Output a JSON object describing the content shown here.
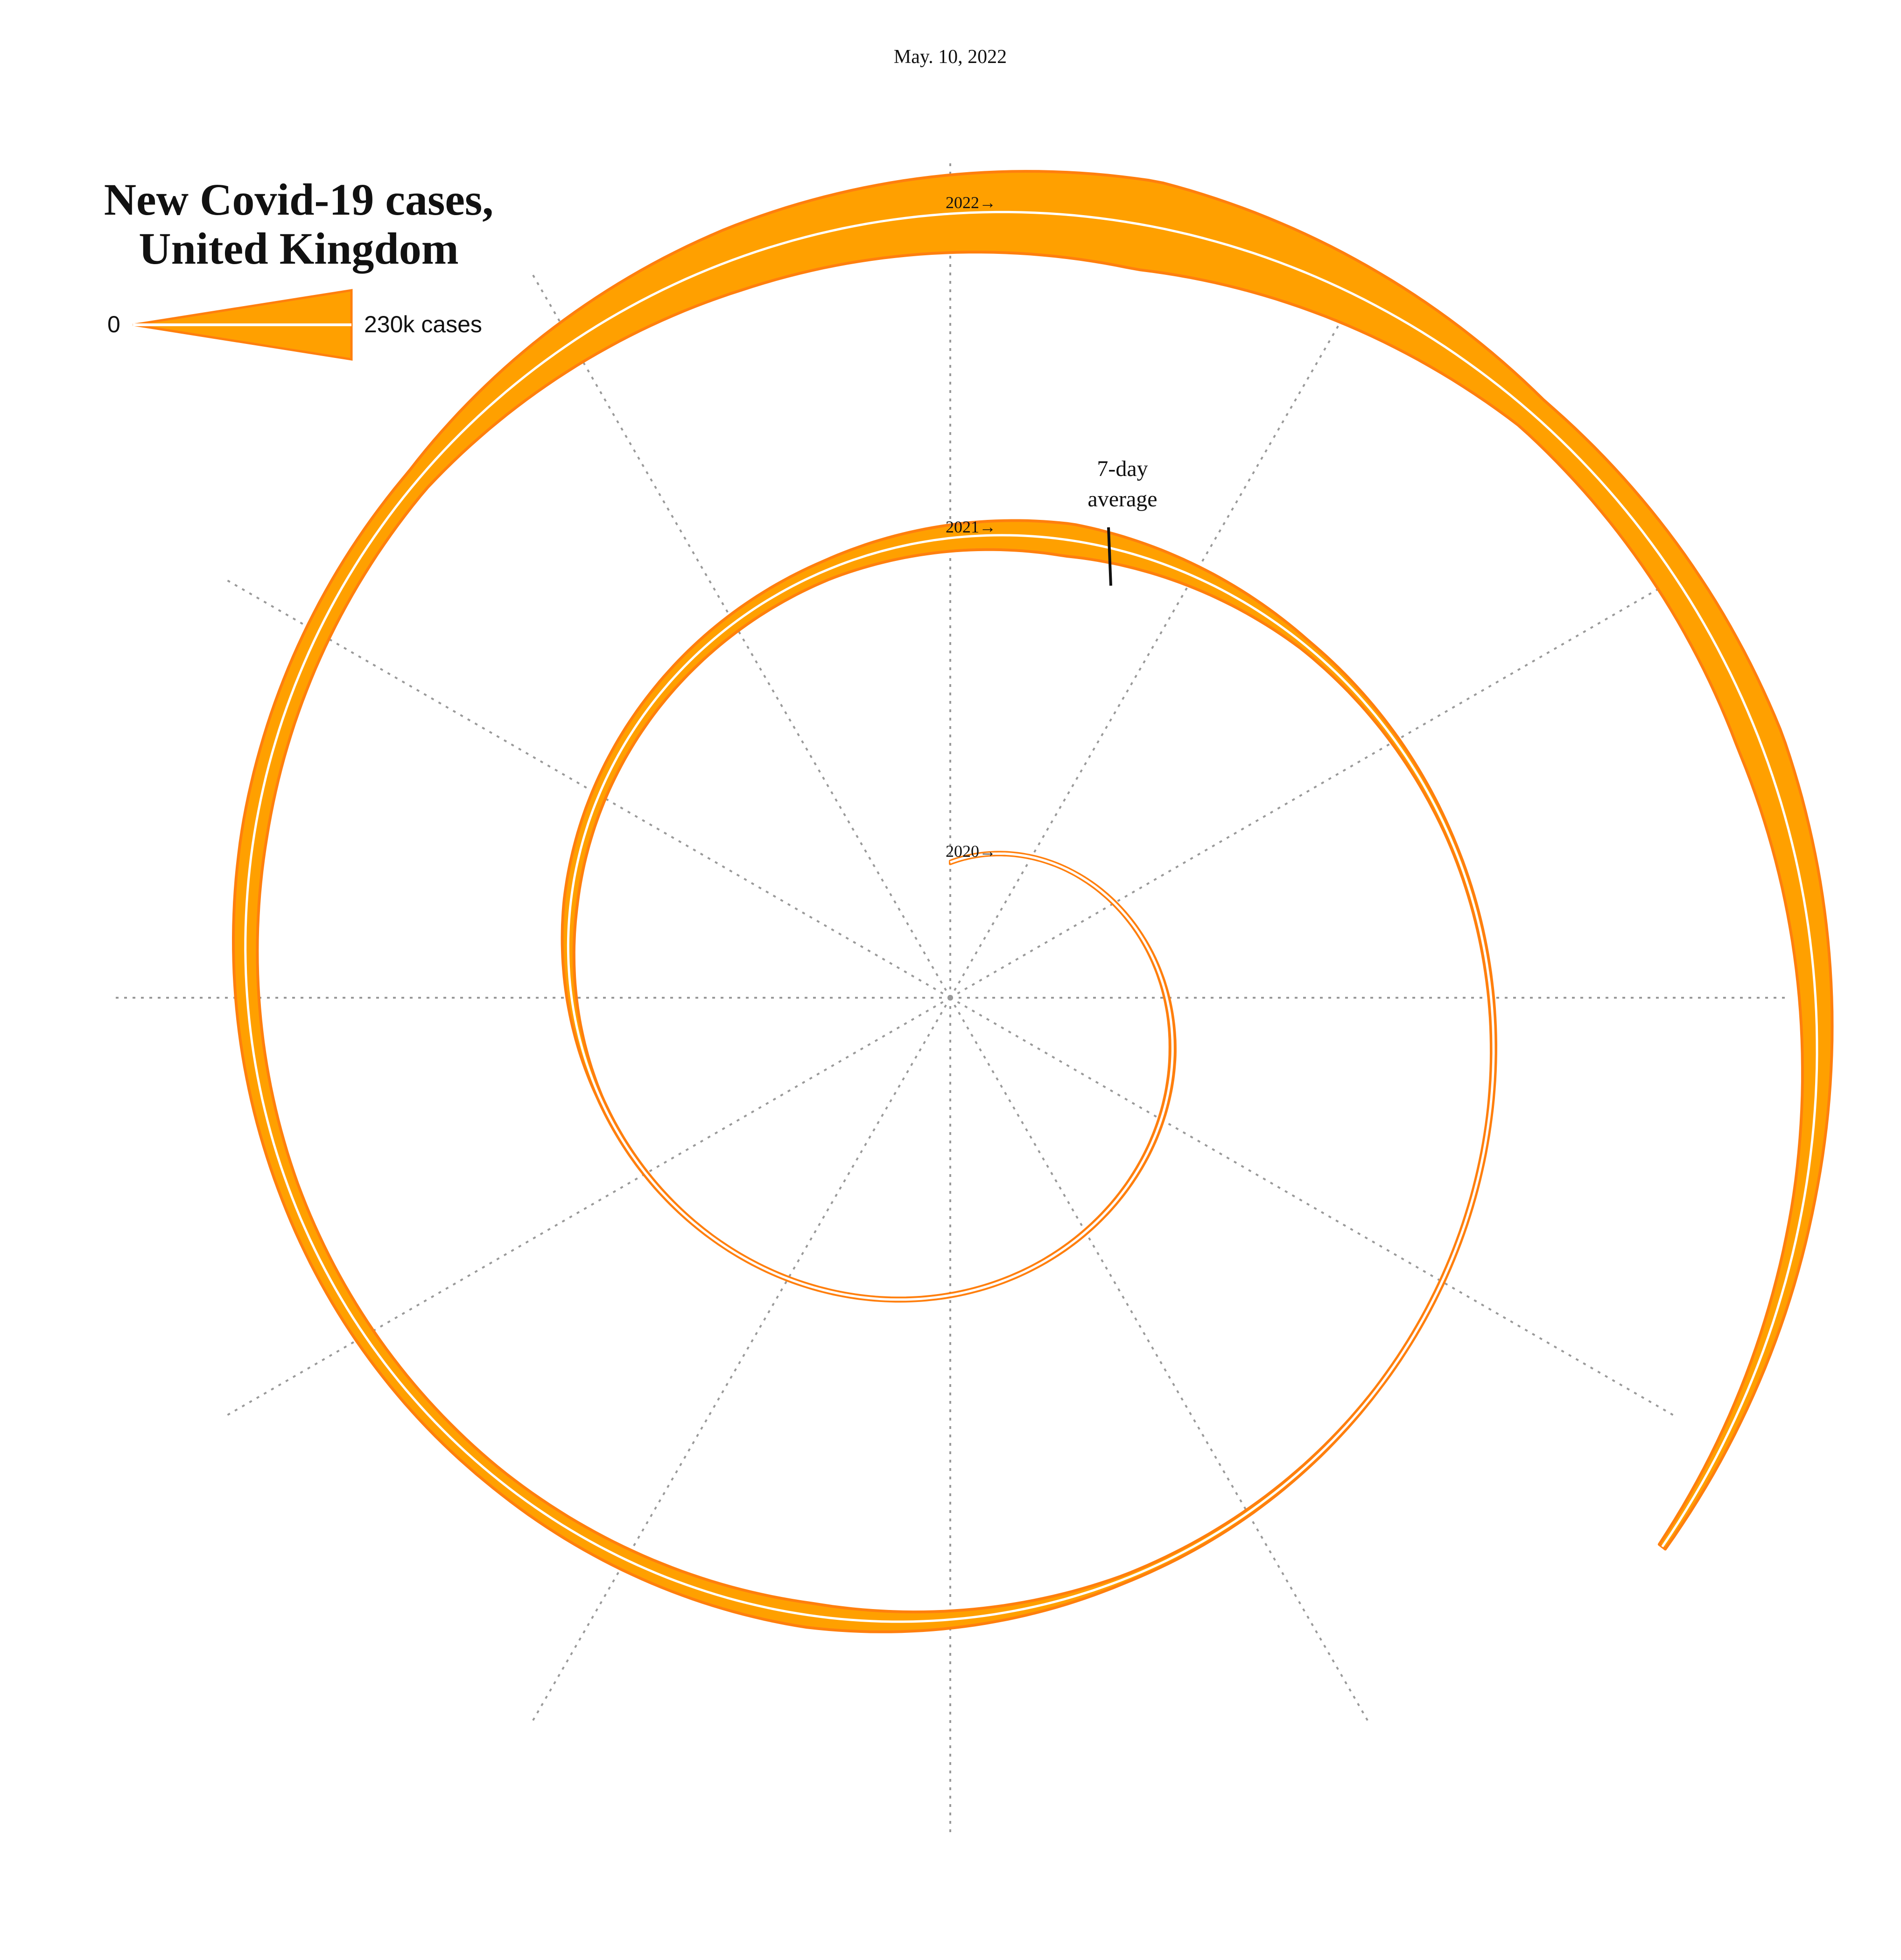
{
  "date_label": "May. 10, 2022",
  "title_line1": "New Covid-19 cases,",
  "title_line2": "United Kingdom",
  "legend": {
    "min_label": "0",
    "max_label": "230k cases",
    "max_value": 230000
  },
  "annotation": {
    "line1": "7-day",
    "line2": "average"
  },
  "colors": {
    "fill": "#ffa000",
    "stroke": "#ff7f0e",
    "avg_line": "#ffffff",
    "text": "#111111",
    "grid": "#999999"
  },
  "chart_data": {
    "type": "area",
    "title": "New Covid-19 cases, United Kingdom",
    "layout": "spiral, one turn per year, starting at top and running clockwise",
    "series_note": "values are estimated 7-day-average daily new cases, read at mid-month",
    "year_labels": [
      "2020→",
      "2021→",
      "2022→"
    ],
    "x": [
      "2020-01-15",
      "2020-02-15",
      "2020-03-15",
      "2020-04-15",
      "2020-05-15",
      "2020-06-15",
      "2020-07-15",
      "2020-08-15",
      "2020-09-15",
      "2020-10-15",
      "2020-11-15",
      "2020-12-15",
      "2021-01-15",
      "2021-02-15",
      "2021-03-15",
      "2021-04-15",
      "2021-05-15",
      "2021-06-15",
      "2021-07-15",
      "2021-08-15",
      "2021-09-15",
      "2021-10-15",
      "2021-11-15",
      "2021-12-15",
      "2022-01-15",
      "2022-02-15",
      "2022-03-15",
      "2022-04-15",
      "2022-05-10"
    ],
    "values": [
      0,
      20,
      1500,
      4800,
      3000,
      1200,
      700,
      1100,
      4000,
      20000,
      24000,
      30000,
      55000,
      15000,
      6000,
      2500,
      2500,
      9000,
      40000,
      30000,
      32000,
      42000,
      40000,
      110000,
      160000,
      60000,
      80000,
      35000,
      9000
    ],
    "ylim": [
      0,
      230000
    ],
    "grid": "12 dotted radial spokes"
  }
}
